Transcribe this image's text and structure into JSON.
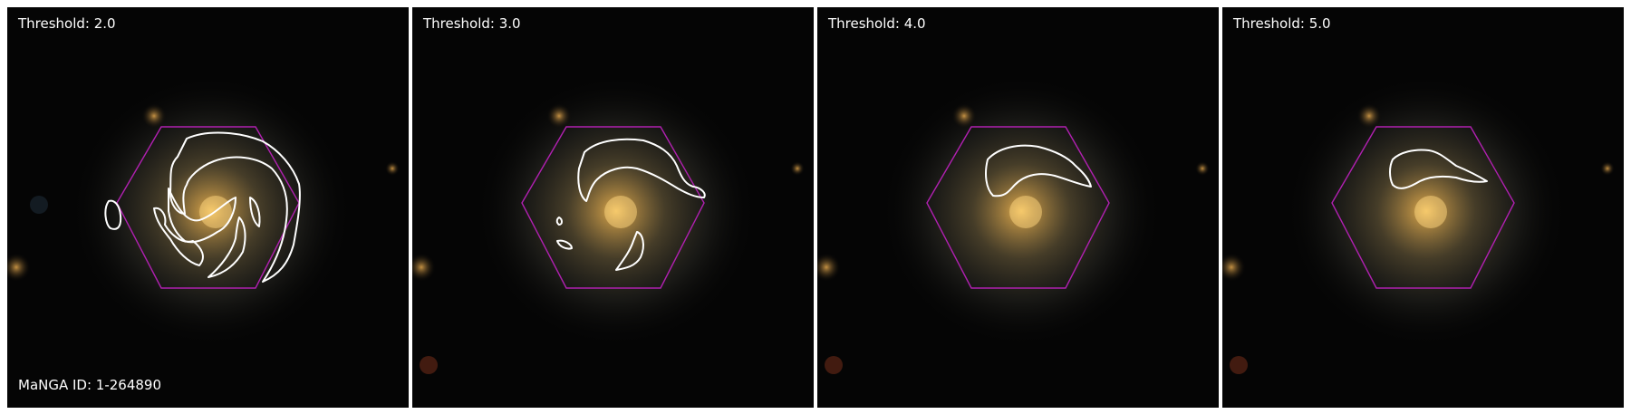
{
  "panels": [
    {
      "threshold_label": "Threshold: 2.0"
    },
    {
      "threshold_label": "Threshold: 3.0"
    },
    {
      "threshold_label": "Threshold: 4.0"
    },
    {
      "threshold_label": "Threshold: 5.0"
    }
  ],
  "manga_id_label": "MaNGA ID: 1-264890",
  "colors": {
    "hexagon": "#b020b0",
    "contour": "#ffffff",
    "galaxy_core": "#ffd27a",
    "background": "#050505"
  }
}
